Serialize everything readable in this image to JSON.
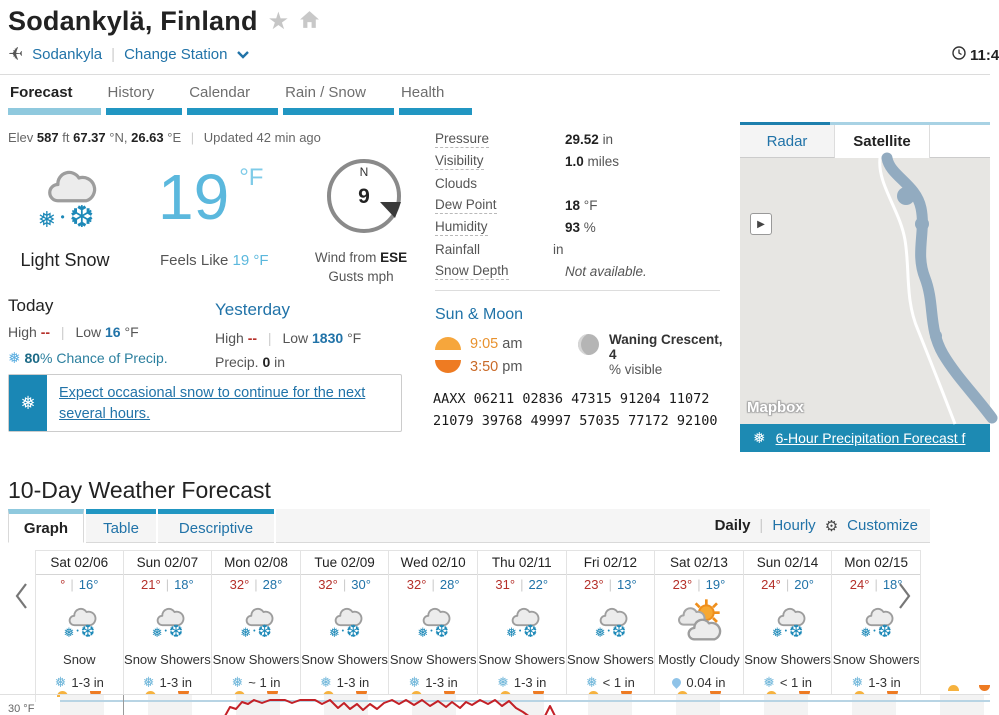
{
  "header": {
    "title": "Sodankylä, Finland",
    "station_name": "Sodankyla",
    "change_station_label": "Change Station",
    "clock_time": "11:4"
  },
  "main_nav": {
    "tabs": [
      {
        "label": "Forecast"
      },
      {
        "label": "History"
      },
      {
        "label": "Calendar"
      },
      {
        "label": "Rain / Snow"
      },
      {
        "label": "Health"
      }
    ]
  },
  "current": {
    "elev_label": "Elev",
    "elev_value": "587",
    "elev_unit": "ft",
    "lat_value": "67.37",
    "lat_unit": "°N,",
    "lon_value": "26.63",
    "lon_unit": "°E",
    "updated": "Updated 42 min ago",
    "condition": "Light Snow",
    "temp": "19",
    "temp_unit": "°F",
    "feels_like_label": "Feels Like",
    "feels_like_value": "19 °F",
    "compass_dir": "N",
    "wind_speed": "9",
    "wind_from_label": "Wind from",
    "wind_from_dir": "ESE",
    "gusts_label": "Gusts mph"
  },
  "today": {
    "title": "Today",
    "high_label": "High",
    "high_value": "--",
    "low_label": "Low",
    "low_value": "16",
    "low_unit": "°F",
    "precip_chance": "80",
    "precip_chance_suffix": "% Chance of Precip."
  },
  "yesterday": {
    "title": "Yesterday",
    "high_label": "High",
    "high_value": "--",
    "low_label": "Low",
    "low_value": "1830",
    "low_unit": "°F",
    "precip_label": "Precip.",
    "precip_value": "0",
    "precip_unit": "in"
  },
  "alert": {
    "text": "Expect occasional snow to continue for the next several hours."
  },
  "details": {
    "rows": [
      {
        "label": "Pressure",
        "bold": "29.52",
        "rest": "in",
        "dotted": true,
        "italic": false
      },
      {
        "label": "Visibility",
        "bold": "1.0",
        "rest": "miles",
        "dotted": true,
        "italic": false
      },
      {
        "label": "Clouds",
        "bold": "",
        "rest": "",
        "dotted": false,
        "italic": false
      },
      {
        "label": "Dew Point",
        "bold": "18",
        "rest": "°F",
        "dotted": true,
        "italic": false
      },
      {
        "label": "Humidity",
        "bold": "93",
        "rest": "%",
        "dotted": true,
        "italic": false
      },
      {
        "label": "Rainfall",
        "bold": "",
        "rest": "in",
        "dotted": false,
        "italic": false
      },
      {
        "label": "Snow Depth",
        "bold": "",
        "rest": "Not available.",
        "dotted": true,
        "italic": true
      }
    ]
  },
  "sun_moon": {
    "title": "Sun & Moon",
    "sunrise_time": "9:05",
    "sunrise_suffix": "am",
    "sunset_time": "3:50",
    "sunset_suffix": "pm",
    "moon_phase": "Waning Crescent,",
    "moon_visible_bold": "4",
    "moon_visible_rest": "% visible",
    "synop_line1": "AAXX 06211 02836 47315 91204 11072",
    "synop_line2": "21079 39768 49997 57035 77172 92100"
  },
  "map_panel": {
    "tabs": [
      {
        "label": "Radar"
      },
      {
        "label": "Satellite"
      }
    ],
    "watermark": "Mapbox",
    "link_text": "6-Hour Precipitation Forecast f"
  },
  "ten_day": {
    "title": "10-Day Weather Forecast",
    "view_tabs": [
      {
        "label": "Graph"
      },
      {
        "label": "Table"
      },
      {
        "label": "Descriptive"
      }
    ],
    "mode_daily": "Daily",
    "mode_hourly": "Hourly",
    "customize_label": "Customize",
    "axis_label": "30 °F",
    "days": [
      {
        "date": "Sat 02/06",
        "high": "°",
        "low": "16°",
        "condition": "Snow",
        "icon": "snow",
        "precip_icon": "snowflake",
        "precip": "1-3 in"
      },
      {
        "date": "Sun 02/07",
        "high": "21°",
        "low": "18°",
        "condition": "Snow Showers",
        "icon": "snow",
        "precip_icon": "snowflake",
        "precip": "1-3 in"
      },
      {
        "date": "Mon 02/08",
        "high": "32°",
        "low": "28°",
        "condition": "Snow Showers",
        "icon": "snow",
        "precip_icon": "snowflake",
        "precip": "~ 1 in"
      },
      {
        "date": "Tue 02/09",
        "high": "32°",
        "low": "30°",
        "condition": "Snow Showers",
        "icon": "snow",
        "precip_icon": "snowflake",
        "precip": "1-3 in"
      },
      {
        "date": "Wed 02/10",
        "high": "32°",
        "low": "28°",
        "condition": "Snow Showers",
        "icon": "snow",
        "precip_icon": "snowflake",
        "precip": "1-3 in"
      },
      {
        "date": "Thu 02/11",
        "high": "31°",
        "low": "22°",
        "condition": "Snow Showers",
        "icon": "snow",
        "precip_icon": "snowflake",
        "precip": "1-3 in"
      },
      {
        "date": "Fri 02/12",
        "high": "23°",
        "low": "13°",
        "condition": "Snow Showers",
        "icon": "snow",
        "precip_icon": "snowflake",
        "precip": "< 1 in"
      },
      {
        "date": "Sat 02/13",
        "high": "23°",
        "low": "19°",
        "condition": "Mostly Cloudy",
        "icon": "mostly-cloudy",
        "precip_icon": "droplet",
        "precip": "0.04 in"
      },
      {
        "date": "Sun 02/14",
        "high": "24°",
        "low": "20°",
        "condition": "Snow Showers",
        "icon": "snow",
        "precip_icon": "snowflake",
        "precip": "< 1 in"
      },
      {
        "date": "Mon 02/15",
        "high": "24°",
        "low": "18°",
        "condition": "Snow Showers",
        "icon": "snow",
        "precip_icon": "snowflake",
        "precip": "1-3 in"
      }
    ]
  },
  "colors": {
    "link_blue": "#2173a8",
    "temp_light_blue": "#5bb8dd",
    "tab_bar_active": "#8fc9de",
    "tab_bar_inactive": "#2196c2",
    "alert_icon_bg": "#1a87b5",
    "map_link_bar_bg": "#1d8ab3",
    "high_red": "#b5302a",
    "low_blue": "#2173a8",
    "snowflake_blue": "#1d89b8",
    "sunrise_orange": "#f6a63c",
    "sunset_orange": "#ee7b22",
    "graph_line_red": "#c32127",
    "freezing_line_blue": "#b8d4e4"
  }
}
